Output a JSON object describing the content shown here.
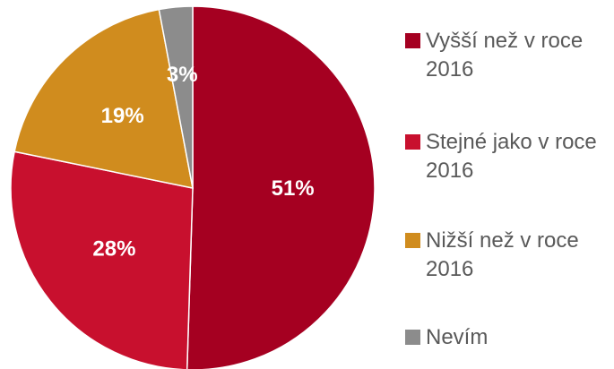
{
  "chart_data": {
    "type": "pie",
    "categories": [
      "Vyšší než v roce 2016",
      "Stejné jako v roce 2016",
      "Nižší než v roce 2016",
      "Nevím"
    ],
    "values": [
      51,
      28,
      19,
      3
    ],
    "value_labels": [
      "51%",
      "28%",
      "19%",
      "3%"
    ],
    "colors": [
      "#a50021",
      "#c8102e",
      "#d08c1e",
      "#8c8c8c"
    ],
    "legend": "right"
  }
}
